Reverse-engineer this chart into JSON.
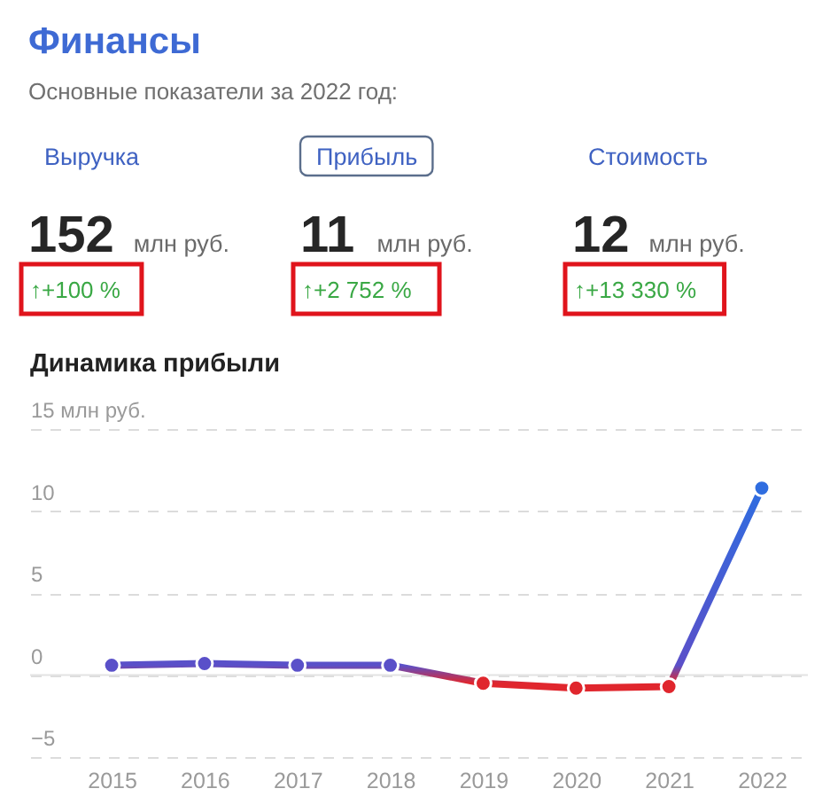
{
  "chart_data": [
    {
      "type": "other",
      "title": "Финансы",
      "subtitle": "Основные показатели за 2022 год:",
      "categories": [
        "Выручка",
        "Прибыль",
        "Стоимость"
      ],
      "values": [
        152,
        11,
        12
      ],
      "data_labels": true,
      "annotations": [
        "млн руб.",
        "млн руб.",
        "млн руб.",
        "↑+100 %",
        "↑+2 752 %",
        "↑+13 330 %"
      ]
    },
    {
      "type": "line",
      "title": "Динамика прибыли",
      "categories": [
        "2015",
        "2016",
        "2017",
        "2018",
        "2019",
        "2020",
        "2021",
        "2022"
      ],
      "series": [
        {
          "colors": [
            "#5a50c9",
            "#5a50c9",
            "#5a50c9",
            "#5a50c9",
            "#e0262d",
            "#e0262d",
            "#e0262d",
            "#2f6de0"
          ],
          "values": [
            0.6,
            0.7,
            0.6,
            0.6,
            -0.5,
            -0.8,
            -0.7,
            11.4
          ]
        }
      ],
      "ylim": [
        -5,
        15
      ],
      "yticks": [
        {
          "value": -5,
          "label": "−5"
        },
        0,
        5,
        10,
        {
          "value": 15,
          "label": "15 млн руб."
        }
      ],
      "grid": "y",
      "ref_lines": [
        {
          "axis": "y",
          "value": 0,
          "color": "#e3e3e3"
        }
      ],
      "marker": "circle",
      "line_style": "solid"
    }
  ]
}
